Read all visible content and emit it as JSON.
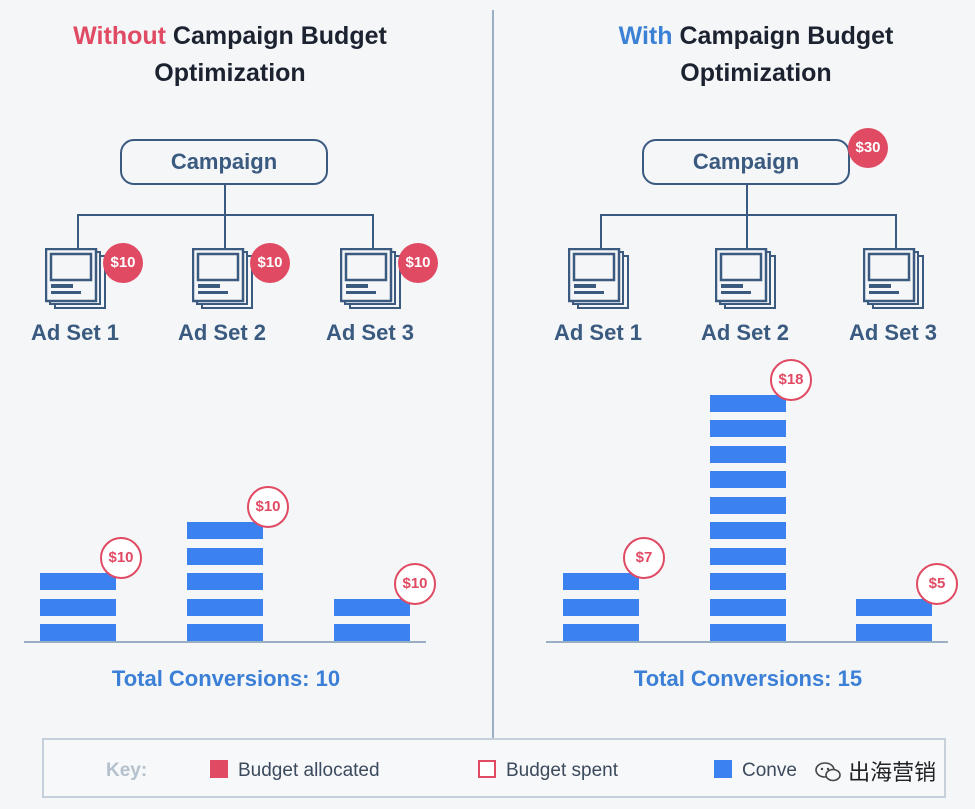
{
  "left": {
    "title_highlight": "Without",
    "title_rest": "Campaign Budget",
    "title_line2": "Optimization",
    "campaign_label": "Campaign",
    "adsets": [
      {
        "label": "Ad Set 1",
        "budget": "$10"
      },
      {
        "label": "Ad Set 2",
        "budget": "$10"
      },
      {
        "label": "Ad Set 3",
        "budget": "$10"
      }
    ],
    "bars": [
      {
        "conversions": 3,
        "spent": "$10"
      },
      {
        "conversions": 5,
        "spent": "$10"
      },
      {
        "conversions": 2,
        "spent": "$10"
      }
    ],
    "total": "Total Conversions: 10"
  },
  "right": {
    "title_highlight": "With",
    "title_rest": "Campaign Budget",
    "title_line2": "Optimization",
    "campaign_label": "Campaign",
    "campaign_budget": "$30",
    "adsets": [
      {
        "label": "Ad Set 1"
      },
      {
        "label": "Ad Set 2"
      },
      {
        "label": "Ad Set 3"
      }
    ],
    "bars": [
      {
        "conversions": 3,
        "spent": "$7"
      },
      {
        "conversions": 10,
        "spent": "$18"
      },
      {
        "conversions": 2,
        "spent": "$5"
      }
    ],
    "total": "Total Conversions: 15"
  },
  "key": {
    "label": "Key:",
    "items": [
      "Budget allocated",
      "Budget spent",
      "Conve"
    ],
    "watermark": "出海营销"
  },
  "colors": {
    "red": "#e04a63",
    "blue": "#3b82f0",
    "navy": "#3a5a80"
  }
}
